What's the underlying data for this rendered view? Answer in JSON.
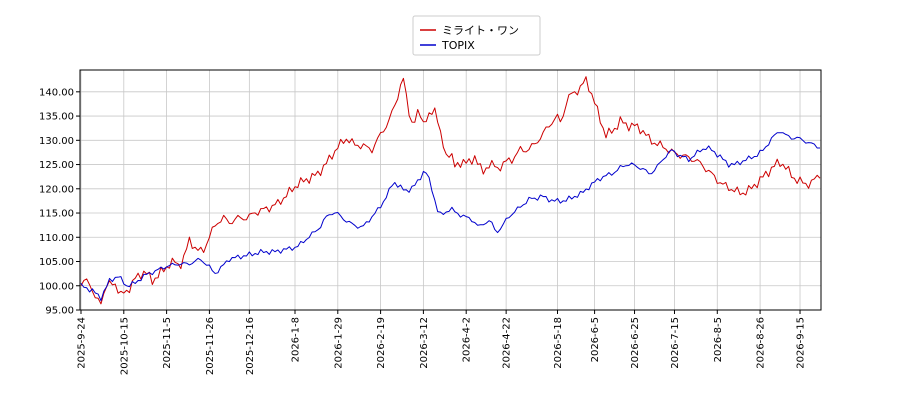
{
  "chart_data": {
    "type": "line",
    "title": "",
    "xlabel": "",
    "ylabel": "",
    "ylim": [
      95,
      144.5
    ],
    "grid": true,
    "legend_position": "top-center",
    "x_tick_labels": [
      "2025-9-24",
      "2025-10-15",
      "2025-11-5",
      "2025-11-26",
      "2025-12-16",
      "2026-1-8",
      "2026-1-29",
      "2026-2-19",
      "2026-3-12",
      "2026-4-2",
      "2026-4-22",
      "2026-5-18",
      "2026-6-5",
      "2026-6-25",
      "2026-7-15",
      "2026-8-5",
      "2026-8-26",
      "2026-9-15"
    ],
    "y_ticks": [
      95,
      100,
      105,
      110,
      115,
      120,
      125,
      130,
      135,
      140
    ],
    "y_tick_labels": [
      "95.00",
      "100.00",
      "105.00",
      "110.00",
      "115.00",
      "120.00",
      "125.00",
      "130.00",
      "135.00",
      "140.00"
    ],
    "x_anchor_index": [
      0,
      15,
      30,
      45,
      59,
      75,
      90,
      105,
      120,
      135,
      149,
      167,
      180,
      194,
      208,
      223,
      238,
      252
    ],
    "n_points": 260,
    "series": [
      {
        "name": "ミライト・ワン",
        "color": "#cc0000",
        "anchors": [
          [
            0,
            100
          ],
          [
            3,
            101.5
          ],
          [
            6,
            97
          ],
          [
            8,
            96.5
          ],
          [
            10,
            100
          ],
          [
            14,
            100.5
          ],
          [
            16,
            98
          ],
          [
            19,
            99
          ],
          [
            22,
            101.5
          ],
          [
            26,
            103
          ],
          [
            29,
            101
          ],
          [
            33,
            103
          ],
          [
            36,
            104.5
          ],
          [
            38,
            105
          ],
          [
            40,
            104
          ],
          [
            42,
            106
          ],
          [
            44,
            109.5
          ],
          [
            46,
            108
          ],
          [
            48,
            107
          ],
          [
            50,
            107.5
          ],
          [
            52,
            110
          ],
          [
            55,
            113
          ],
          [
            58,
            114
          ],
          [
            60,
            113
          ],
          [
            64,
            114
          ],
          [
            68,
            114
          ],
          [
            70,
            115
          ],
          [
            73,
            115.5
          ],
          [
            76,
            116
          ],
          [
            80,
            117
          ],
          [
            84,
            119
          ],
          [
            88,
            121
          ],
          [
            92,
            122
          ],
          [
            96,
            123
          ],
          [
            100,
            125.5
          ],
          [
            104,
            128.5
          ],
          [
            108,
            130.5
          ],
          [
            111,
            129
          ],
          [
            114,
            129
          ],
          [
            118,
            128
          ],
          [
            122,
            131.5
          ],
          [
            125,
            134
          ],
          [
            128,
            138
          ],
          [
            130,
            142
          ],
          [
            131,
            142.5
          ],
          [
            133,
            136
          ],
          [
            135,
            133
          ],
          [
            137,
            136
          ],
          [
            139,
            134
          ],
          [
            142,
            135
          ],
          [
            144,
            137
          ],
          [
            146,
            131
          ],
          [
            148,
            126.5
          ],
          [
            150,
            128
          ],
          [
            152,
            124
          ],
          [
            155,
            126
          ],
          [
            158,
            125
          ],
          [
            160,
            127
          ],
          [
            163,
            123
          ],
          [
            166,
            125.5
          ],
          [
            169,
            124
          ],
          [
            172,
            125.5
          ],
          [
            175,
            126
          ],
          [
            178,
            128
          ],
          [
            181,
            128
          ],
          [
            184,
            129
          ],
          [
            187,
            131
          ],
          [
            190,
            133
          ],
          [
            193,
            135
          ],
          [
            195,
            133.5
          ],
          [
            197,
            138
          ],
          [
            199,
            139.5
          ],
          [
            201,
            140
          ],
          [
            203,
            141
          ],
          [
            205,
            142.5
          ],
          [
            207,
            140
          ],
          [
            209,
            137
          ],
          [
            211,
            134
          ],
          [
            213,
            131
          ],
          [
            216,
            132
          ],
          [
            219,
            134
          ],
          [
            222,
            133
          ],
          [
            225,
            133
          ],
          [
            228,
            132
          ],
          [
            231,
            130
          ],
          [
            233,
            129.5
          ],
          [
            235,
            129
          ],
          [
            237,
            128.5
          ],
          [
            240,
            127.5
          ],
          [
            243,
            127
          ],
          [
            246,
            126.5
          ],
          [
            249,
            126
          ],
          [
            252,
            125
          ],
          [
            254,
            124
          ],
          [
            256,
            123
          ],
          [
            258,
            122
          ],
          [
            260,
            121
          ],
          [
            262,
            120.5
          ],
          [
            264,
            120
          ],
          [
            266,
            119.5
          ],
          [
            268,
            119
          ],
          [
            270,
            119.5
          ],
          [
            272,
            120
          ],
          [
            274,
            121
          ],
          [
            276,
            122
          ],
          [
            278,
            123
          ],
          [
            280,
            124
          ],
          [
            282,
            125
          ],
          [
            284,
            125.5
          ],
          [
            286,
            124.5
          ],
          [
            288,
            123
          ],
          [
            290,
            122
          ],
          [
            292,
            121.5
          ],
          [
            294,
            121
          ],
          [
            296,
            121
          ],
          [
            298,
            122
          ],
          [
            300,
            123
          ]
        ],
        "points": []
      },
      {
        "name": "TOPIX",
        "color": "#0000cc",
        "anchors": [
          [
            0,
            100
          ],
          [
            4,
            99
          ],
          [
            7,
            97.5
          ],
          [
            10,
            101
          ],
          [
            13,
            102
          ],
          [
            16,
            100
          ],
          [
            19,
            100.5
          ],
          [
            22,
            102
          ],
          [
            26,
            103
          ],
          [
            30,
            104
          ],
          [
            34,
            104.5
          ],
          [
            38,
            104.5
          ],
          [
            42,
            105.5
          ],
          [
            45,
            104
          ],
          [
            47,
            102.5
          ],
          [
            49,
            103.5
          ],
          [
            52,
            105.5
          ],
          [
            56,
            106
          ],
          [
            60,
            106.5
          ],
          [
            64,
            107
          ],
          [
            68,
            107
          ],
          [
            72,
            107.5
          ],
          [
            76,
            108
          ],
          [
            80,
            110
          ],
          [
            84,
            112
          ],
          [
            86,
            114
          ],
          [
            88,
            115
          ],
          [
            90,
            115
          ],
          [
            93,
            113.5
          ],
          [
            96,
            112.5
          ],
          [
            99,
            112
          ],
          [
            102,
            114
          ],
          [
            105,
            116
          ],
          [
            108,
            119
          ],
          [
            110,
            121.5
          ],
          [
            112,
            120.5
          ],
          [
            114,
            119.5
          ],
          [
            116,
            120
          ],
          [
            118,
            121
          ],
          [
            120,
            123
          ],
          [
            121,
            124
          ],
          [
            123,
            121
          ],
          [
            125,
            116.5
          ],
          [
            126,
            114.5
          ],
          [
            128,
            115
          ],
          [
            130,
            116
          ],
          [
            132,
            115
          ],
          [
            134,
            114.5
          ],
          [
            136,
            114
          ],
          [
            138,
            113.5
          ],
          [
            140,
            112
          ],
          [
            142,
            113
          ],
          [
            144,
            113.5
          ],
          [
            146,
            111
          ],
          [
            148,
            112
          ],
          [
            150,
            114
          ],
          [
            152,
            115
          ],
          [
            154,
            116
          ],
          [
            156,
            117
          ],
          [
            158,
            118
          ],
          [
            160,
            118
          ],
          [
            162,
            118.5
          ],
          [
            164,
            118
          ],
          [
            166,
            117.5
          ],
          [
            168,
            117.5
          ],
          [
            170,
            117.5
          ],
          [
            172,
            118
          ],
          [
            174,
            118.5
          ],
          [
            176,
            119
          ],
          [
            178,
            120
          ],
          [
            180,
            121
          ],
          [
            182,
            122
          ],
          [
            184,
            122.5
          ],
          [
            186,
            123
          ],
          [
            188,
            123.5
          ],
          [
            190,
            124.5
          ],
          [
            192,
            125
          ],
          [
            194,
            125
          ],
          [
            196,
            124.5
          ],
          [
            198,
            124
          ],
          [
            200,
            123
          ],
          [
            202,
            124
          ],
          [
            204,
            125.5
          ],
          [
            206,
            127
          ],
          [
            208,
            128
          ],
          [
            210,
            127
          ],
          [
            212,
            126.5
          ],
          [
            214,
            126
          ],
          [
            216,
            127
          ],
          [
            218,
            128
          ],
          [
            220,
            128.5
          ],
          [
            222,
            128
          ],
          [
            224,
            127
          ],
          [
            226,
            126
          ],
          [
            228,
            125
          ],
          [
            230,
            125
          ],
          [
            232,
            125.5
          ],
          [
            234,
            126
          ],
          [
            236,
            126.5
          ],
          [
            238,
            127
          ],
          [
            240,
            128
          ],
          [
            242,
            129.5
          ],
          [
            244,
            131
          ],
          [
            246,
            132
          ],
          [
            248,
            131
          ],
          [
            250,
            130.5
          ],
          [
            252,
            130.5
          ],
          [
            254,
            130
          ],
          [
            256,
            129.5
          ],
          [
            258,
            129
          ],
          [
            260,
            128.5
          ]
        ],
        "points": []
      }
    ]
  },
  "legend": {
    "items": [
      {
        "label": "ミライト・ワン",
        "color": "#cc0000"
      },
      {
        "label": "TOPIX",
        "color": "#0000cc"
      }
    ]
  }
}
